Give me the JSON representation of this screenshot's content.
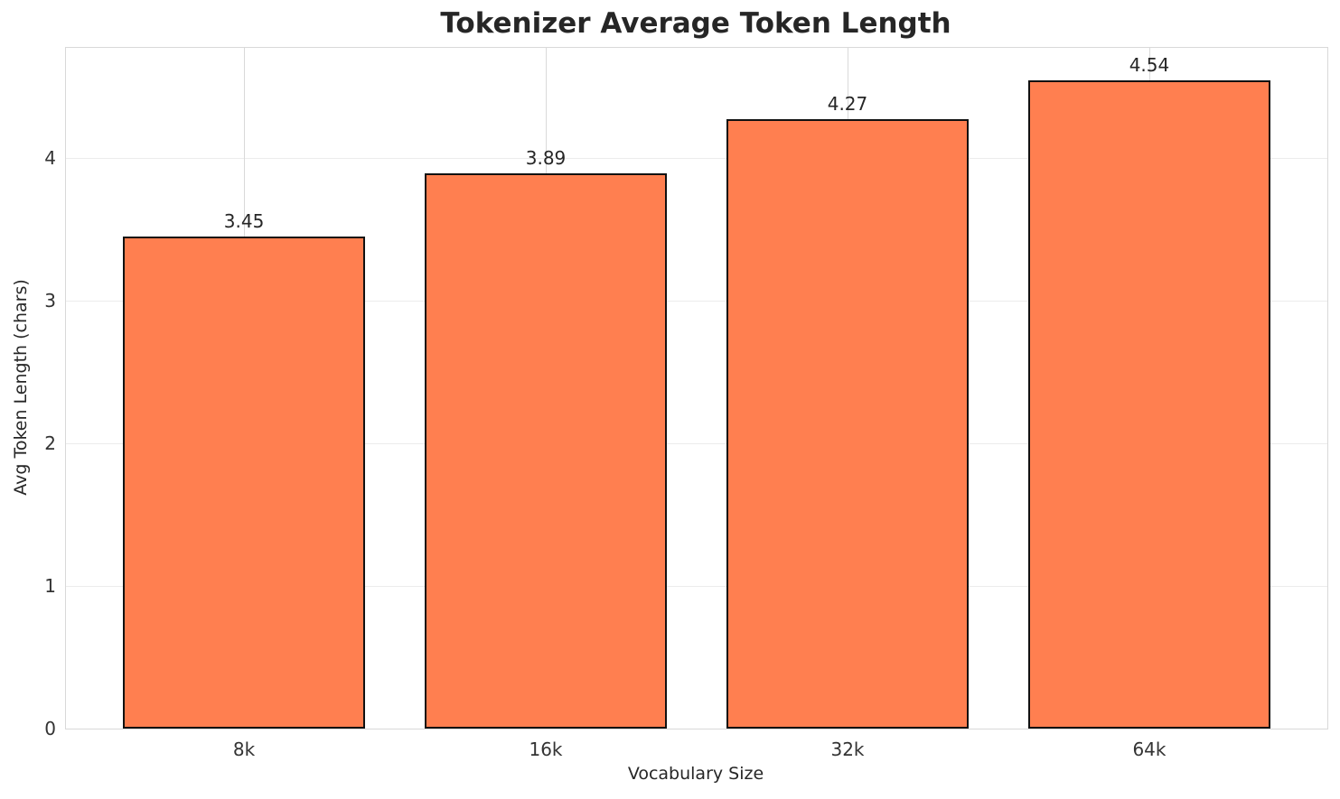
{
  "chart_data": {
    "type": "bar",
    "title": "Tokenizer Average Token Length",
    "xlabel": "Vocabulary Size",
    "ylabel": "Avg Token Length (chars)",
    "categories": [
      "8k",
      "16k",
      "32k",
      "64k"
    ],
    "values": [
      3.45,
      3.89,
      4.27,
      4.54
    ],
    "value_labels": [
      "3.45",
      "3.89",
      "4.27",
      "4.54"
    ],
    "yticks": [
      "0",
      "1",
      "2",
      "3",
      "4"
    ],
    "ytick_values": [
      0,
      1,
      2,
      3,
      4
    ],
    "ylim": [
      0,
      4.77
    ],
    "grid": true,
    "legend": false,
    "colors": {
      "bar_fill": "#ff7f50",
      "bar_edge": "#111111",
      "background": "#ffffff",
      "grid_horizontal": "#ececec",
      "grid_vertical": "#d9d9d9",
      "spine": "#d9d9d9",
      "title_text": "#262626",
      "tick_text": "#333333",
      "label_text": "#262626"
    }
  }
}
